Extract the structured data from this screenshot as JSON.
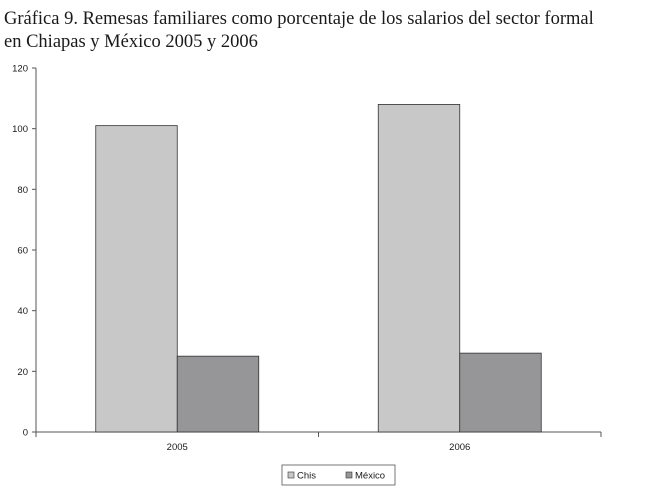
{
  "chart_data": {
    "type": "bar",
    "title_line1": "Gráfica 9. Remesas familiares como porcentaje de los salarios del sector formal",
    "title_line2": "en Chiapas y México 2005 y 2006",
    "categories": [
      "2005",
      "2006"
    ],
    "series": [
      {
        "name": "Chis",
        "values": [
          101,
          108
        ],
        "color": "#c8c8c8"
      },
      {
        "name": "México",
        "values": [
          25,
          26
        ],
        "color": "#969699"
      }
    ],
    "ylim": [
      0,
      120
    ],
    "yticks": [
      0,
      20,
      40,
      60,
      80,
      100,
      120
    ],
    "grid": false,
    "legend_position": "bottom"
  }
}
